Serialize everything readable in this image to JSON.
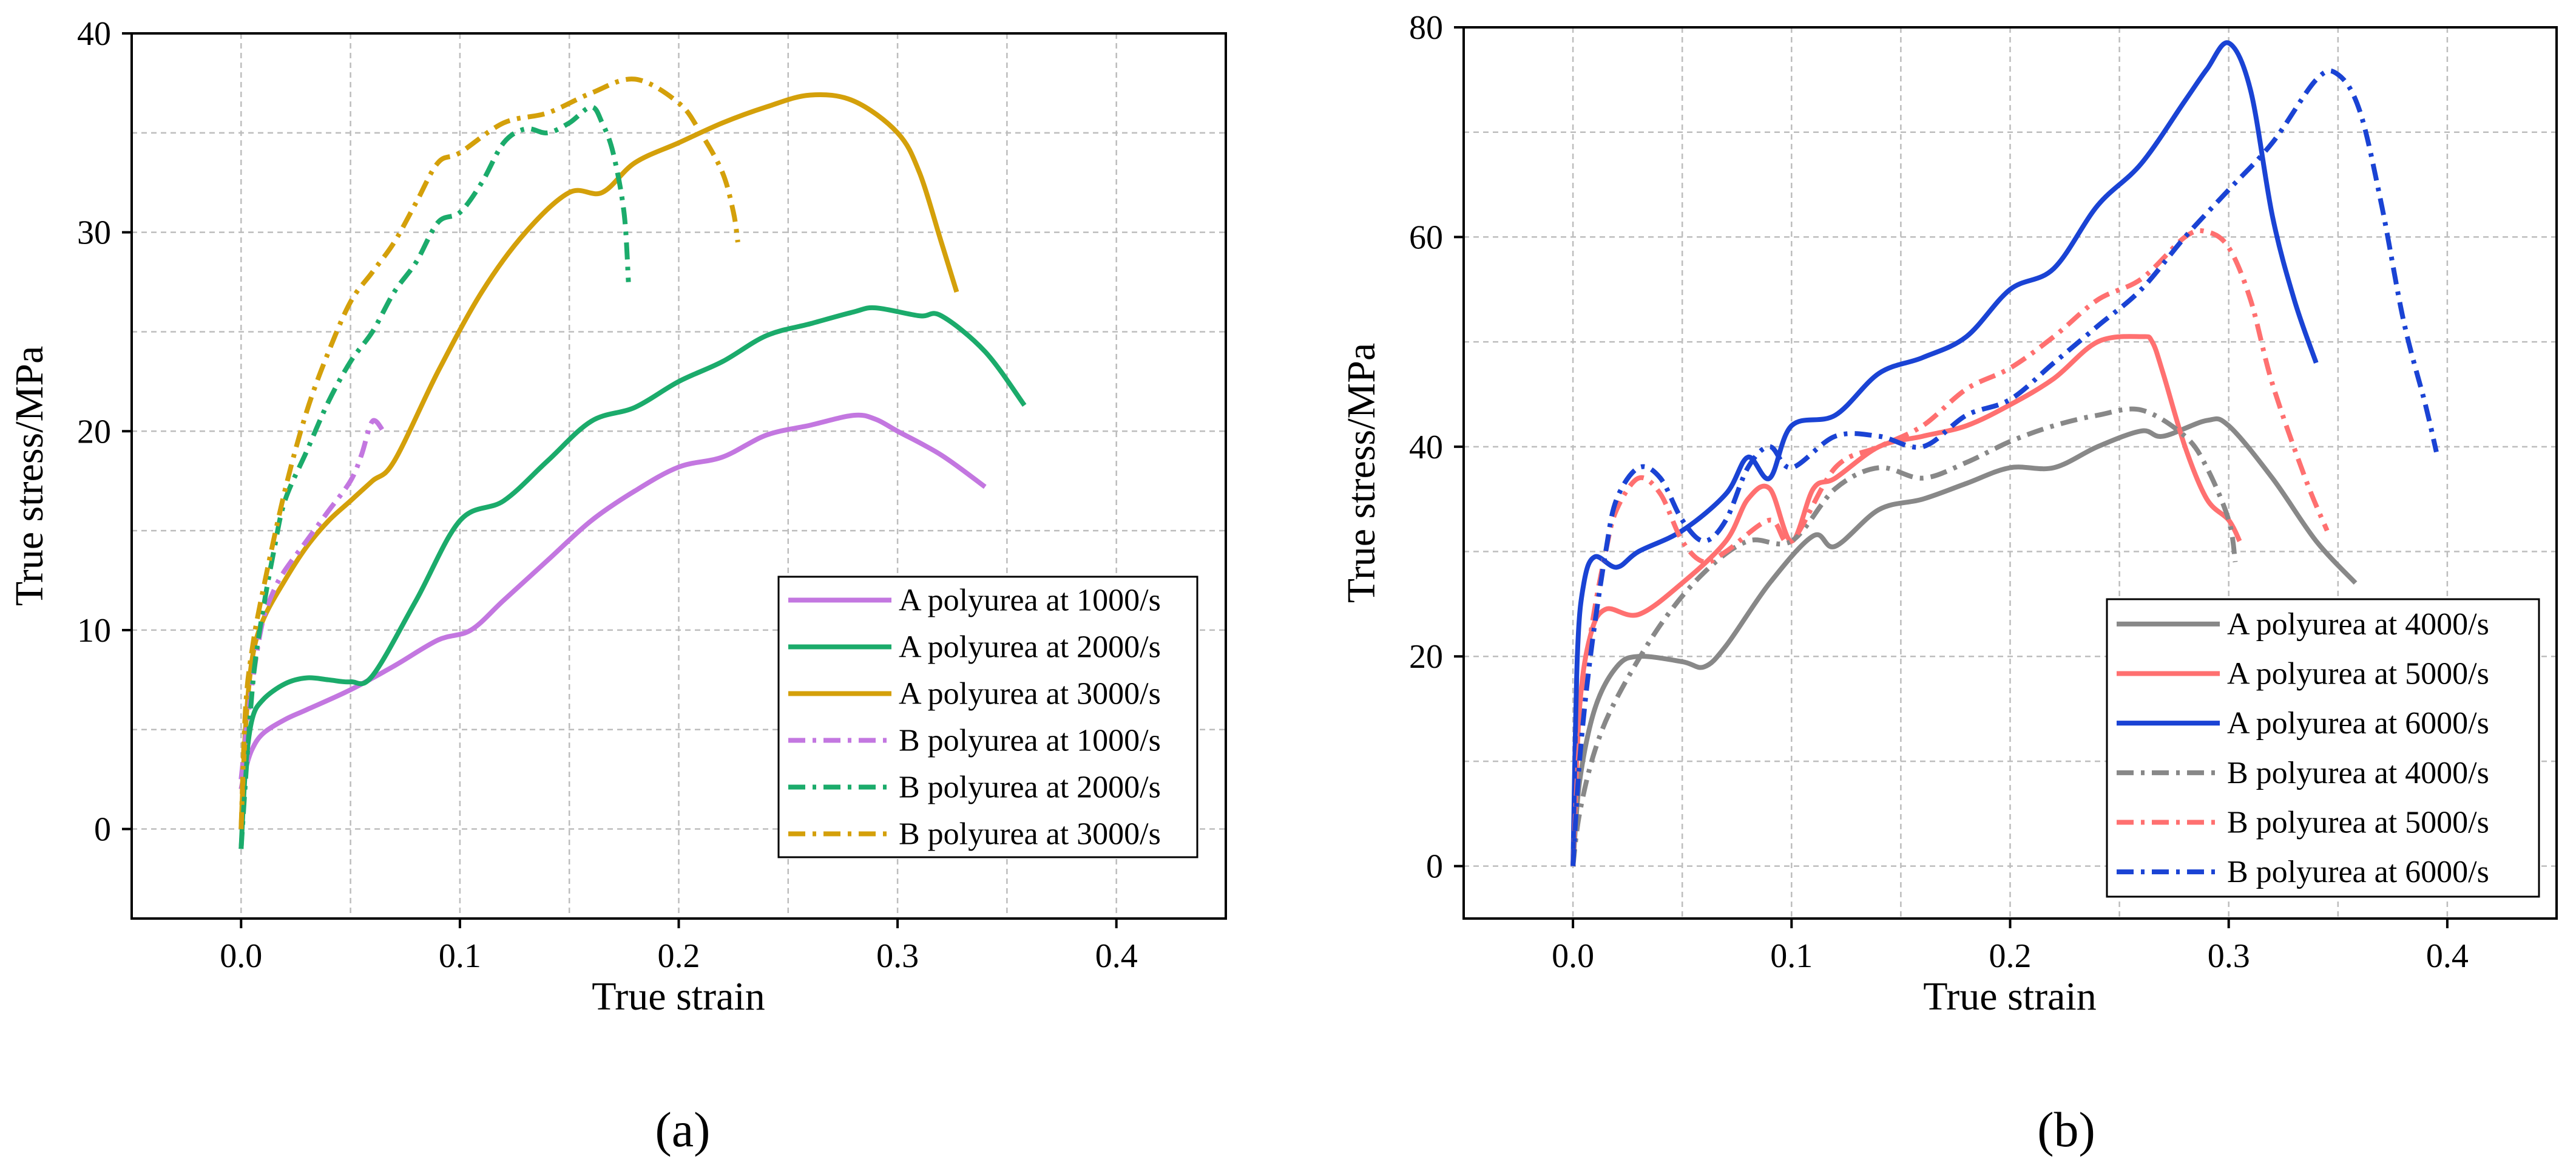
{
  "figure": {
    "panel_labels": [
      "(a)",
      "(b)"
    ]
  },
  "chart_data": [
    {
      "type": "line",
      "panel": "(a)",
      "title": "",
      "xlabel": "True strain",
      "ylabel": "True stress/MPa",
      "xlim": [
        -0.05,
        0.45
      ],
      "ylim": [
        -4.5,
        40
      ],
      "xticks": [
        0.0,
        0.1,
        0.2,
        0.3,
        0.4
      ],
      "xtick_labels": [
        "0.0",
        "0.1",
        "0.2",
        "0.3",
        "0.4"
      ],
      "yticks": [
        0,
        10,
        20,
        30,
        40
      ],
      "ytick_labels": [
        "0",
        "10",
        "20",
        "30",
        "40"
      ],
      "grid": true,
      "legend_position": "bottom-right",
      "series": [
        {
          "name": "A polyurea at 1000/s",
          "color": "#c377e0",
          "style": "solid",
          "x": [
            0,
            0.002,
            0.005,
            0.01,
            0.02,
            0.03,
            0.05,
            0.07,
            0.09,
            0.105,
            0.12,
            0.14,
            0.16,
            0.18,
            0.2,
            0.22,
            0.24,
            0.26,
            0.28,
            0.29,
            0.3,
            0.32,
            0.34
          ],
          "y": [
            2,
            3,
            4,
            4.8,
            5.5,
            6,
            7,
            8.2,
            9.5,
            10,
            11.5,
            13.5,
            15.5,
            17,
            18.2,
            18.7,
            19.8,
            20.3,
            20.8,
            20.6,
            20,
            18.8,
            17.2
          ]
        },
        {
          "name": "A polyurea at 2000/s",
          "color": "#1bab6b",
          "style": "solid",
          "x": [
            0,
            0.002,
            0.005,
            0.01,
            0.02,
            0.03,
            0.04,
            0.05,
            0.06,
            0.08,
            0.1,
            0.12,
            0.14,
            0.16,
            0.18,
            0.2,
            0.22,
            0.24,
            0.26,
            0.28,
            0.29,
            0.31,
            0.32,
            0.34,
            0.358
          ],
          "y": [
            -1,
            3,
            5.5,
            6.5,
            7.3,
            7.6,
            7.5,
            7.4,
            7.7,
            11.5,
            15.5,
            16.5,
            18.5,
            20.5,
            21.2,
            22.5,
            23.5,
            24.8,
            25.4,
            26,
            26.2,
            25.8,
            25.8,
            24,
            21.3
          ]
        },
        {
          "name": "A polyurea at 3000/s",
          "color": "#d4a00a",
          "style": "solid",
          "x": [
            0,
            0.002,
            0.005,
            0.01,
            0.02,
            0.03,
            0.04,
            0.05,
            0.06,
            0.07,
            0.09,
            0.11,
            0.13,
            0.15,
            0.165,
            0.18,
            0.2,
            0.22,
            0.24,
            0.26,
            0.28,
            0.3,
            0.31,
            0.32,
            0.327
          ],
          "y": [
            0,
            5,
            8.5,
            10.5,
            12.5,
            14.2,
            15.5,
            16.5,
            17.5,
            18.5,
            23,
            27,
            30,
            32,
            32,
            33.5,
            34.5,
            35.5,
            36.3,
            36.9,
            36.6,
            35,
            33,
            29.5,
            27
          ]
        },
        {
          "name": "B polyurea at 1000/s",
          "color": "#c377e0",
          "style": "dashdot",
          "x": [
            0,
            0.003,
            0.006,
            0.01,
            0.015,
            0.02,
            0.03,
            0.04,
            0.05,
            0.055,
            0.06,
            0.065
          ],
          "y": [
            2.5,
            5.5,
            8,
            10.5,
            12,
            13,
            14.5,
            16,
            17.5,
            18.8,
            20.5,
            20
          ]
        },
        {
          "name": "B polyurea at 2000/s",
          "color": "#1bab6b",
          "style": "dashdot",
          "x": [
            0,
            0.003,
            0.006,
            0.01,
            0.015,
            0.02,
            0.03,
            0.04,
            0.05,
            0.06,
            0.07,
            0.08,
            0.09,
            0.1,
            0.11,
            0.12,
            0.13,
            0.14,
            0.15,
            0.16,
            0.165,
            0.17,
            0.175,
            0.177
          ],
          "y": [
            -1,
            4,
            8,
            11,
            14,
            16.5,
            19,
            21.5,
            23.5,
            25,
            27,
            28.5,
            30.5,
            31,
            32.5,
            34.5,
            35.2,
            35,
            35.5,
            36.3,
            35.5,
            34,
            31,
            27.5
          ]
        },
        {
          "name": "B polyurea at 3000/s",
          "color": "#d4a00a",
          "style": "dashdot",
          "x": [
            0,
            0.002,
            0.005,
            0.01,
            0.02,
            0.03,
            0.04,
            0.05,
            0.06,
            0.07,
            0.08,
            0.09,
            0.1,
            0.12,
            0.14,
            0.16,
            0.18,
            0.2,
            0.21,
            0.22,
            0.225,
            0.227
          ],
          "y": [
            0,
            6,
            9,
            12,
            17,
            21,
            24,
            26.5,
            28,
            29.5,
            31.5,
            33.5,
            34,
            35.5,
            36,
            37,
            37.7,
            36.5,
            35,
            33,
            31,
            29.5
          ]
        }
      ]
    },
    {
      "type": "line",
      "panel": "(b)",
      "title": "",
      "xlabel": "True strain",
      "ylabel": "True stress/MPa",
      "xlim": [
        -0.05,
        0.45
      ],
      "ylim": [
        -5,
        80
      ],
      "xticks": [
        0.0,
        0.1,
        0.2,
        0.3,
        0.4
      ],
      "xtick_labels": [
        "0.0",
        "0.1",
        "0.2",
        "0.3",
        "0.4"
      ],
      "yticks": [
        0,
        20,
        40,
        60,
        80
      ],
      "ytick_labels": [
        "0",
        "20",
        "40",
        "60",
        "80"
      ],
      "grid": true,
      "legend_position": "bottom-right",
      "series": [
        {
          "name": "A polyurea at 4000/s",
          "color": "#888888",
          "style": "solid",
          "x": [
            0,
            0.003,
            0.01,
            0.02,
            0.03,
            0.05,
            0.06,
            0.07,
            0.09,
            0.11,
            0.12,
            0.14,
            0.16,
            0.18,
            0.2,
            0.22,
            0.24,
            0.26,
            0.27,
            0.29,
            0.3,
            0.32,
            0.34,
            0.358
          ],
          "y": [
            0,
            8,
            15,
            19,
            20,
            19.5,
            19,
            21,
            27,
            31.5,
            30.5,
            34,
            35,
            36.5,
            38,
            38,
            40,
            41.5,
            41,
            42.5,
            42,
            37,
            31,
            27
          ]
        },
        {
          "name": "A polyurea at 5000/s",
          "color": "#ff7070",
          "style": "solid",
          "x": [
            0,
            0.003,
            0.008,
            0.015,
            0.03,
            0.05,
            0.07,
            0.08,
            0.09,
            0.1,
            0.11,
            0.12,
            0.14,
            0.16,
            0.18,
            0.2,
            0.22,
            0.24,
            0.26,
            0.265,
            0.27,
            0.28,
            0.29,
            0.3,
            0.305
          ],
          "y": [
            0,
            15,
            22,
            24.5,
            24,
            27,
            31,
            35,
            36,
            31,
            36,
            37,
            40,
            41,
            42,
            44,
            46.5,
            50,
            50.5,
            50,
            47,
            40,
            35,
            33,
            31
          ]
        },
        {
          "name": "A polyurea at 6000/s",
          "color": "#1a43d4",
          "style": "solid",
          "x": [
            0,
            0.002,
            0.005,
            0.01,
            0.02,
            0.03,
            0.05,
            0.07,
            0.08,
            0.09,
            0.1,
            0.12,
            0.14,
            0.16,
            0.18,
            0.2,
            0.22,
            0.24,
            0.26,
            0.28,
            0.29,
            0.3,
            0.31,
            0.32,
            0.33,
            0.34
          ],
          "y": [
            0,
            20,
            27,
            29.5,
            28.5,
            30,
            32,
            35.5,
            39,
            37,
            42,
            43,
            47,
            48.5,
            50.5,
            55,
            57,
            63,
            67,
            73,
            76,
            78.5,
            74,
            62,
            54,
            48
          ]
        },
        {
          "name": "B polyurea at 4000/s",
          "color": "#888888",
          "style": "dashdot",
          "x": [
            0,
            0.003,
            0.01,
            0.02,
            0.04,
            0.06,
            0.08,
            0.1,
            0.12,
            0.14,
            0.16,
            0.18,
            0.2,
            0.22,
            0.24,
            0.26,
            0.28,
            0.29,
            0.3,
            0.303
          ],
          "y": [
            0,
            5,
            11,
            16,
            23,
            28,
            31,
            31,
            36,
            38,
            37,
            38.5,
            40.5,
            42,
            43,
            43.5,
            41,
            38,
            33,
            29
          ]
        },
        {
          "name": "B polyurea at 5000/s",
          "color": "#ff7070",
          "style": "dashdot",
          "x": [
            0,
            0.003,
            0.008,
            0.015,
            0.02,
            0.03,
            0.04,
            0.05,
            0.06,
            0.07,
            0.09,
            0.1,
            0.12,
            0.14,
            0.16,
            0.18,
            0.2,
            0.22,
            0.24,
            0.26,
            0.28,
            0.29,
            0.3,
            0.31,
            0.32,
            0.335,
            0.345
          ],
          "y": [
            0,
            12,
            22,
            30,
            34,
            37,
            35.5,
            31,
            29,
            30,
            33,
            31,
            38,
            40,
            42,
            45.5,
            47.5,
            50.5,
            54,
            56,
            60,
            60.5,
            59,
            54,
            46,
            37,
            32
          ]
        },
        {
          "name": "B polyurea at 6000/s",
          "color": "#1a43d4",
          "style": "dashdot",
          "x": [
            0,
            0.003,
            0.008,
            0.015,
            0.02,
            0.03,
            0.04,
            0.05,
            0.06,
            0.07,
            0.08,
            0.09,
            0.1,
            0.12,
            0.14,
            0.16,
            0.18,
            0.2,
            0.22,
            0.24,
            0.26,
            0.28,
            0.3,
            0.32,
            0.34,
            0.35,
            0.36,
            0.37,
            0.38,
            0.39,
            0.395
          ],
          "y": [
            0,
            10,
            20,
            30,
            35,
            38,
            37,
            33,
            31,
            33,
            38,
            40,
            38,
            41,
            41,
            40,
            43,
            44.5,
            48,
            51.5,
            55,
            60,
            64.5,
            69,
            75,
            75.5,
            72,
            63,
            52,
            44,
            39.5
          ]
        }
      ]
    }
  ]
}
